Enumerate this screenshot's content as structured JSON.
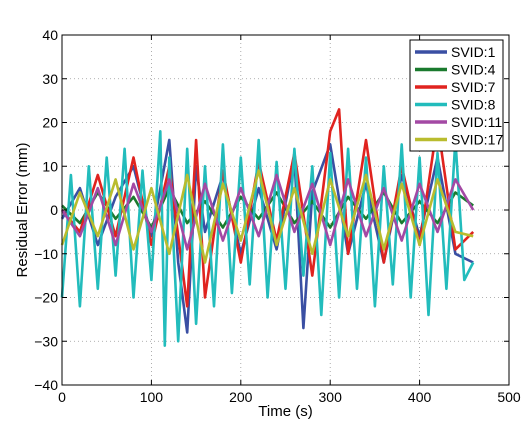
{
  "chart_data": {
    "type": "line",
    "title": "",
    "xlabel": "Time (s)",
    "ylabel": "Residual Error (mm)",
    "xlim": [
      0,
      500
    ],
    "ylim": [
      -40,
      40
    ],
    "xticks": [
      "0",
      "100",
      "200",
      "300",
      "400",
      "500"
    ],
    "yticks": [
      "40",
      "30",
      "20",
      "10",
      "0",
      "−10",
      "−20",
      "−30",
      "−40"
    ],
    "grid": true,
    "legend_position": "top-right",
    "series": [
      {
        "name": "SVID:1",
        "color": "#3a4fa3",
        "x": [
          0,
          20,
          40,
          60,
          80,
          100,
          120,
          130,
          140,
          150,
          160,
          180,
          200,
          220,
          240,
          260,
          270,
          280,
          300,
          320,
          340,
          360,
          380,
          400,
          420,
          440,
          460
        ],
        "y": [
          -2,
          5,
          -8,
          3,
          10,
          -6,
          16,
          -12,
          -28,
          10,
          -5,
          8,
          -10,
          5,
          -9,
          12,
          -27,
          4,
          15,
          -10,
          6,
          -12,
          8,
          -6,
          12,
          -10,
          -12
        ]
      },
      {
        "name": "SVID:4",
        "color": "#1a7a2e",
        "x": [
          0,
          20,
          40,
          60,
          80,
          100,
          120,
          140,
          160,
          180,
          200,
          220,
          240,
          260,
          280,
          300,
          320,
          340,
          360,
          380,
          400,
          420,
          440,
          460
        ],
        "y": [
          1,
          -3,
          4,
          -2,
          3,
          -4,
          5,
          -3,
          2,
          -4,
          3,
          -2,
          4,
          -3,
          2,
          -4,
          3,
          -2,
          4,
          -3,
          2,
          -3,
          4,
          1
        ]
      },
      {
        "name": "SVID:7",
        "color": "#e0231f",
        "x": [
          0,
          20,
          40,
          60,
          80,
          100,
          120,
          140,
          150,
          160,
          180,
          200,
          220,
          240,
          260,
          280,
          300,
          310,
          320,
          340,
          360,
          380,
          400,
          420,
          440,
          460
        ],
        "y": [
          0,
          -5,
          8,
          -6,
          12,
          -8,
          10,
          -22,
          16,
          -20,
          9,
          -12,
          11,
          -7,
          13,
          -15,
          18,
          23,
          -10,
          16,
          -12,
          10,
          -8,
          20,
          -9,
          -5
        ]
      },
      {
        "name": "SVID:8",
        "color": "#22bcbc",
        "x": [
          0,
          10,
          20,
          30,
          40,
          50,
          60,
          70,
          80,
          90,
          100,
          110,
          115,
          120,
          130,
          140,
          150,
          160,
          170,
          180,
          190,
          200,
          210,
          220,
          230,
          240,
          250,
          260,
          270,
          280,
          290,
          300,
          310,
          320,
          330,
          340,
          350,
          360,
          370,
          380,
          390,
          400,
          410,
          420,
          430,
          440,
          450,
          460
        ],
        "y": [
          -20,
          8,
          -22,
          10,
          -18,
          12,
          -15,
          14,
          -20,
          9,
          -16,
          18,
          -31,
          12,
          -30,
          14,
          -26,
          10,
          -22,
          15,
          -19,
          12,
          -17,
          16,
          -20,
          11,
          -18,
          14,
          -15,
          10,
          -24,
          13,
          -20,
          14,
          -18,
          12,
          -22,
          10,
          -17,
          15,
          -20,
          12,
          -24,
          13,
          -18,
          16,
          -16,
          -12
        ]
      },
      {
        "name": "SVID:11",
        "color": "#a349a4",
        "x": [
          0,
          20,
          40,
          60,
          80,
          100,
          120,
          140,
          160,
          180,
          200,
          220,
          240,
          260,
          280,
          300,
          320,
          340,
          360,
          380,
          400,
          420,
          440,
          460
        ],
        "y": [
          0,
          -6,
          5,
          -8,
          6,
          -5,
          7,
          -9,
          6,
          -7,
          5,
          -6,
          8,
          -5,
          6,
          -8,
          7,
          -6,
          5,
          -7,
          6,
          -5,
          7,
          0
        ]
      },
      {
        "name": "SVID:17",
        "color": "#b9bc2e",
        "x": [
          0,
          20,
          40,
          60,
          80,
          100,
          120,
          140,
          160,
          180,
          200,
          220,
          240,
          260,
          280,
          300,
          320,
          340,
          360,
          380,
          400,
          420,
          440,
          460
        ],
        "y": [
          -8,
          4,
          -6,
          7,
          -9,
          5,
          -10,
          8,
          -12,
          6,
          -7,
          9,
          -8,
          5,
          -10,
          7,
          -6,
          8,
          -9,
          6,
          -8,
          7,
          -5,
          -6
        ]
      }
    ]
  }
}
